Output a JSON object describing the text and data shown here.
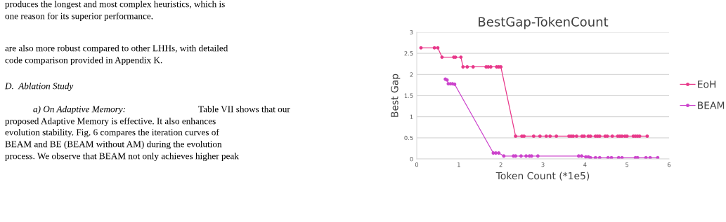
{
  "chart_data": {
    "type": "line",
    "title": "BestGap-TokenCount",
    "xlabel": "Token Count (*1e5)",
    "ylabel": "Best Gap",
    "xlim": [
      0,
      6
    ],
    "xticks": [
      0,
      1,
      2,
      3,
      4,
      5,
      6
    ],
    "ylim": [
      0,
      3
    ],
    "yticks": [
      0,
      0.5,
      1,
      1.5,
      2,
      2.5,
      3
    ],
    "grid": "y",
    "legend": "right",
    "marker": "circle",
    "line_style": "solid",
    "series": [
      {
        "name": "EoH",
        "color": "#e8388a",
        "x": [
          0.1,
          0.42,
          0.5,
          0.6,
          0.88,
          0.92,
          1.05,
          1.1,
          1.2,
          1.34,
          1.65,
          1.7,
          1.76,
          1.9,
          1.95,
          2.0,
          2.35,
          2.5,
          2.55,
          2.78,
          2.93,
          3.08,
          3.17,
          3.32,
          3.62,
          3.67,
          3.72,
          3.8,
          3.93,
          3.98,
          4.08,
          4.13,
          4.25,
          4.3,
          4.35,
          4.48,
          4.53,
          4.65,
          4.78,
          4.83,
          4.88,
          4.95,
          5.0,
          5.15,
          5.2,
          5.25,
          5.3,
          5.48
        ],
        "values": [
          2.63,
          2.63,
          2.63,
          2.41,
          2.41,
          2.41,
          2.41,
          2.18,
          2.18,
          2.18,
          2.18,
          2.18,
          2.18,
          2.18,
          2.18,
          2.18,
          0.54,
          0.54,
          0.54,
          0.54,
          0.54,
          0.54,
          0.54,
          0.54,
          0.54,
          0.54,
          0.54,
          0.54,
          0.54,
          0.54,
          0.54,
          0.54,
          0.54,
          0.54,
          0.54,
          0.54,
          0.54,
          0.54,
          0.54,
          0.54,
          0.54,
          0.54,
          0.54,
          0.54,
          0.54,
          0.54,
          0.54,
          0.54
        ]
      },
      {
        "name": "BEAM",
        "color": "#cc44cc",
        "x": [
          0.68,
          0.72,
          0.75,
          0.8,
          0.85,
          0.9,
          1.82,
          1.88,
          1.95,
          2.07,
          2.3,
          2.35,
          2.48,
          2.6,
          2.68,
          2.73,
          2.88,
          3.85,
          3.92,
          4.02,
          4.08,
          4.13,
          4.25,
          4.35,
          4.55,
          4.63,
          4.8,
          4.88,
          5.2,
          5.25,
          5.45,
          5.55,
          5.73
        ],
        "values": [
          1.89,
          1.87,
          1.78,
          1.78,
          1.78,
          1.77,
          0.14,
          0.14,
          0.14,
          0.07,
          0.07,
          0.07,
          0.07,
          0.07,
          0.07,
          0.07,
          0.07,
          0.07,
          0.07,
          0.05,
          0.05,
          0.03,
          0.03,
          0.03,
          0.03,
          0.03,
          0.03,
          0.03,
          0.03,
          0.03,
          0.03,
          0.03,
          0.03
        ]
      }
    ],
    "annotations": [
      "produces the longest and most complex heuristics, which is",
      "one reason for its superior performance.",
      "are also more robust compared to other LHHs, with detailed",
      "code comparison provided in Appendix K.",
      "D.  Ablation Study",
      "a) On Adaptive Memory:",
      "Table VII shows that our",
      "proposed Adaptive Memory is effective. It also enhances",
      "evolution stability. Fig. 6 compares the iteration curves of",
      "BEAM and BE (BEAM without AM) during the evolution",
      "process. We observe that BEAM not only achieves higher peak"
    ]
  }
}
